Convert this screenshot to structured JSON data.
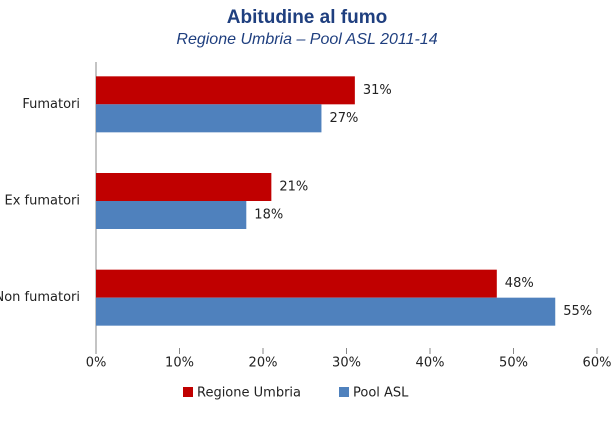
{
  "chart_data": {
    "type": "barh",
    "title": "Abitudine al fumo",
    "subtitle": "Regione Umbria – Pool ASL 2011-14",
    "categories": [
      "Fumatori",
      "Ex fumatori",
      "Non fumatori"
    ],
    "series": [
      {
        "name": "Regione Umbria",
        "color": "#c00000",
        "values": [
          31,
          21,
          48
        ],
        "value_labels": [
          "31%",
          "21%",
          "48%"
        ]
      },
      {
        "name": "Pool ASL",
        "color": "#4f81bd",
        "values": [
          27,
          18,
          55
        ],
        "value_labels": [
          "27%",
          "18%",
          "55%"
        ]
      }
    ],
    "xlim": [
      0,
      60
    ],
    "xticks": [
      {
        "value": 0,
        "label": "0%"
      },
      {
        "value": 10,
        "label": "10%"
      },
      {
        "value": 20,
        "label": "20%"
      },
      {
        "value": 30,
        "label": "30%"
      },
      {
        "value": 40,
        "label": "40%"
      },
      {
        "value": 50,
        "label": "50%"
      },
      {
        "value": 60,
        "label": "60%"
      }
    ],
    "legend": "bottom"
  }
}
